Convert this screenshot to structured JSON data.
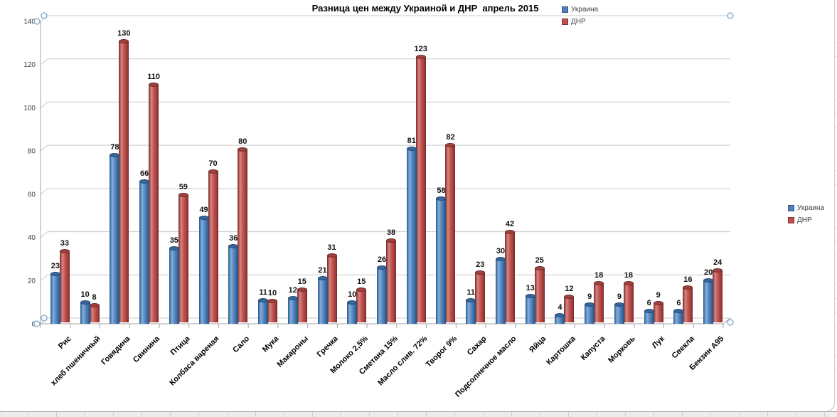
{
  "chart_data": {
    "type": "bar",
    "style": "3d-cylinder",
    "title": "Разница цен между Украиной и ДНР  апрель 2015",
    "categories": [
      "Рис",
      "хлеб пшеничный",
      "Говядина",
      "Свинина",
      "Птица",
      "Колбаса вареная",
      "Сало",
      "Мука",
      "Макароны",
      "Гречка",
      "Молоко 2,5%",
      "Сметана 15%",
      "Масло слив. 72%",
      "Творог 9%",
      "Сахар",
      "Подсолнечное масло",
      "Яйца",
      "Картошка",
      "Капуста",
      "Морковь",
      "Лук",
      "Свекла",
      "Бензин А95"
    ],
    "series": [
      {
        "name": "Украина",
        "color": "#4f81bd",
        "values": [
          23,
          10,
          78,
          66,
          35,
          49,
          36,
          11,
          12,
          21,
          10,
          26,
          81,
          58,
          11,
          30,
          13,
          4,
          9,
          9,
          6,
          6,
          20
        ]
      },
      {
        "name": "ДНР",
        "color": "#c0504d",
        "values": [
          33,
          8,
          130,
          110,
          59,
          70,
          80,
          10,
          15,
          31,
          15,
          38,
          123,
          82,
          23,
          42,
          25,
          12,
          18,
          18,
          9,
          16,
          24
        ]
      }
    ],
    "ylim": [
      0,
      140
    ],
    "yticks": [
      0,
      20,
      40,
      60,
      80,
      100,
      120,
      140
    ],
    "grid": true,
    "data_labels": true,
    "legend_positions": [
      "top-right",
      "right-middle"
    ]
  },
  "legend": {
    "items": [
      {
        "label": "Украина",
        "color": "#4f81bd"
      },
      {
        "label": "ДНР",
        "color": "#c0504d"
      }
    ]
  },
  "colors": {
    "gridline": "#c9c9c9",
    "axis": "#a6a6a6",
    "handle_stroke": "#84a7c6",
    "handle_fill": "#f4f9fc"
  }
}
